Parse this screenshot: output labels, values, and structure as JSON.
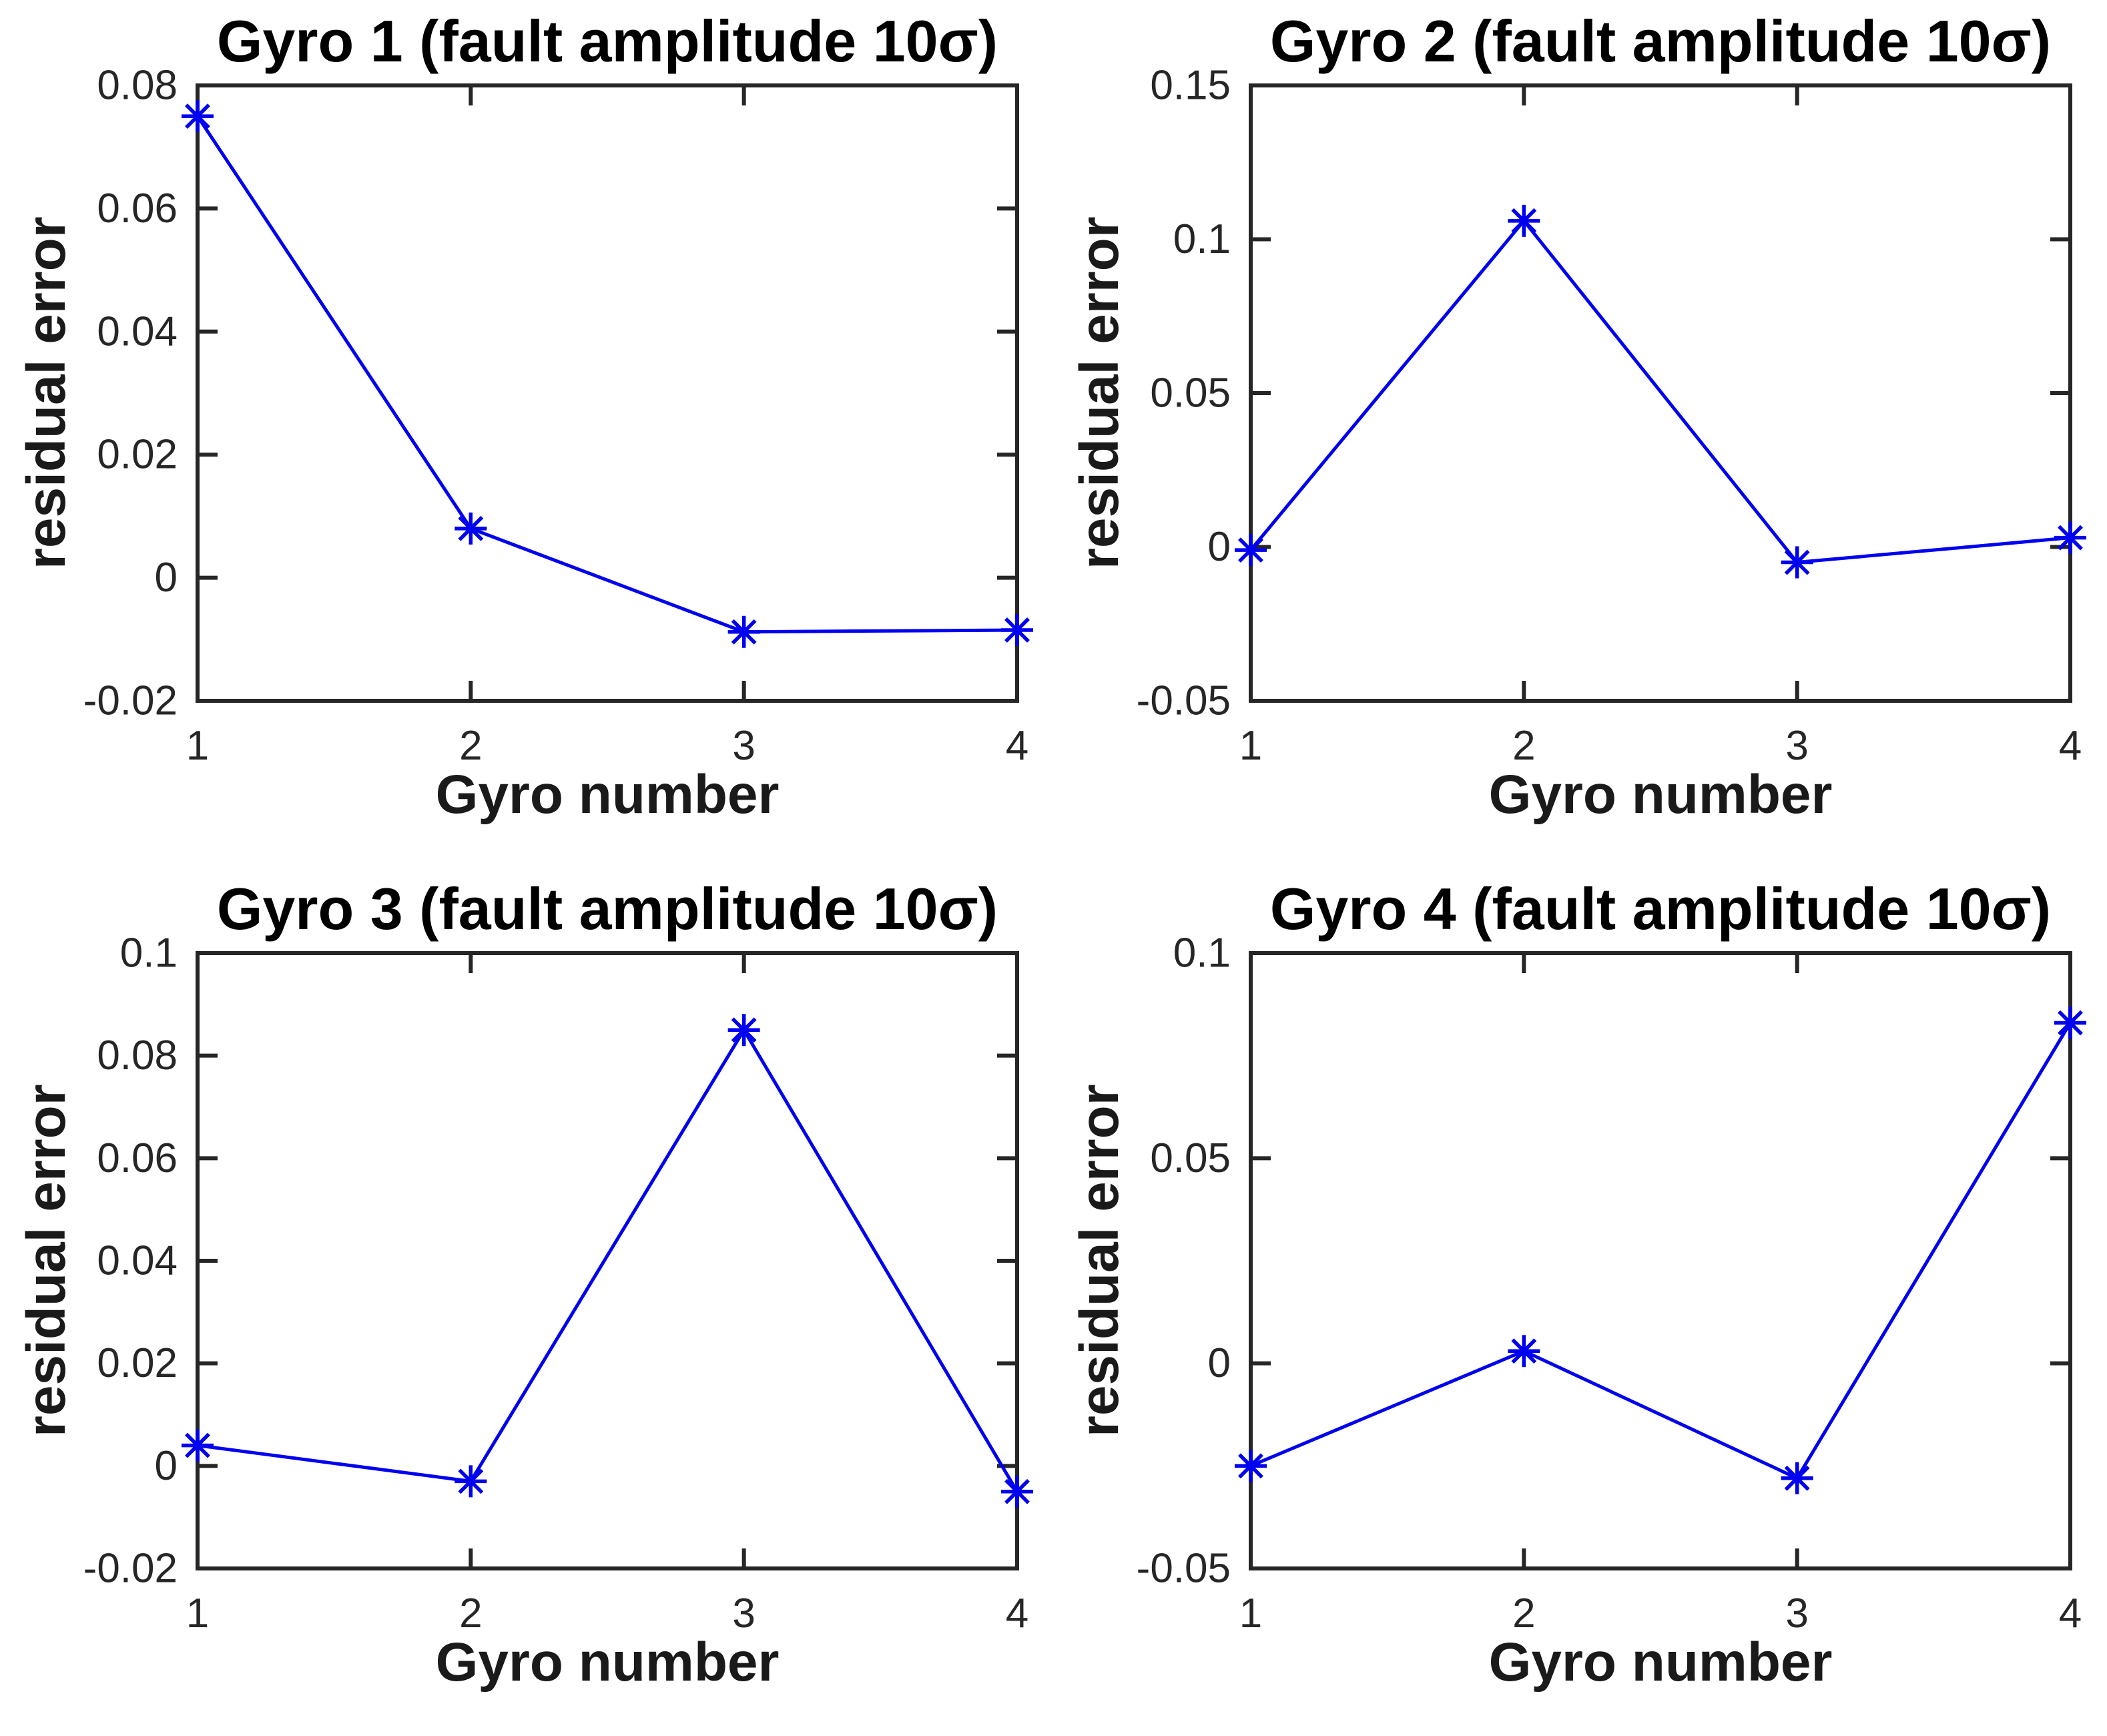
{
  "page": {
    "background": "#ffffff"
  },
  "colors": {
    "line": "#0000f0",
    "marker": "#0000f0",
    "axes": "#262626",
    "tick_text": "#262626",
    "label_text": "#1a1a1a",
    "title_text": "#000000"
  },
  "chart_data": [
    {
      "type": "line",
      "title": "Gyro 1 (fault amplitude 10σ)",
      "xlabel": "Gyro number",
      "ylabel": "residual error",
      "x": [
        1,
        2,
        3,
        4
      ],
      "values": [
        0.075,
        0.008,
        -0.0088,
        -0.0085
      ],
      "xlim": [
        1,
        4
      ],
      "ylim": [
        -0.02,
        0.08
      ],
      "xticks": [
        1,
        2,
        3,
        4
      ],
      "xtick_labels": [
        "1",
        "2",
        "3",
        "4"
      ],
      "yticks": [
        -0.02,
        0,
        0.02,
        0.04,
        0.06,
        0.08
      ],
      "ytick_labels": [
        "-0.02",
        "0",
        "0.02",
        "0.04",
        "0.06",
        "0.08"
      ],
      "marker": "asterisk",
      "legend": "none",
      "grid": false
    },
    {
      "type": "line",
      "title": "Gyro 2 (fault amplitude 10σ)",
      "xlabel": "Gyro number",
      "ylabel": "residual error",
      "x": [
        1,
        2,
        3,
        4
      ],
      "values": [
        -0.001,
        0.106,
        -0.005,
        0.003
      ],
      "xlim": [
        1,
        4
      ],
      "ylim": [
        -0.05,
        0.15
      ],
      "xticks": [
        1,
        2,
        3,
        4
      ],
      "xtick_labels": [
        "1",
        "2",
        "3",
        "4"
      ],
      "yticks": [
        -0.05,
        0,
        0.05,
        0.1,
        0.15
      ],
      "ytick_labels": [
        "-0.05",
        "0",
        "0.05",
        "0.1",
        "0.15"
      ],
      "marker": "asterisk",
      "legend": "none",
      "grid": false
    },
    {
      "type": "line",
      "title": "Gyro 3 (fault amplitude 10σ)",
      "xlabel": "Gyro number",
      "ylabel": "residual error",
      "x": [
        1,
        2,
        3,
        4
      ],
      "values": [
        0.004,
        -0.003,
        0.085,
        -0.005
      ],
      "xlim": [
        1,
        4
      ],
      "ylim": [
        -0.02,
        0.1
      ],
      "xticks": [
        1,
        2,
        3,
        4
      ],
      "xtick_labels": [
        "1",
        "2",
        "3",
        "4"
      ],
      "yticks": [
        -0.02,
        0,
        0.02,
        0.04,
        0.06,
        0.08,
        0.1
      ],
      "ytick_labels": [
        "-0.02",
        "0",
        "0.02",
        "0.04",
        "0.06",
        "0.08",
        "0.1"
      ],
      "marker": "asterisk",
      "legend": "none",
      "grid": false
    },
    {
      "type": "line",
      "title": "Gyro 4 (fault amplitude 10σ)",
      "xlabel": "Gyro number",
      "ylabel": "residual error",
      "x": [
        1,
        2,
        3,
        4
      ],
      "values": [
        -0.025,
        0.003,
        -0.028,
        0.083
      ],
      "xlim": [
        1,
        4
      ],
      "ylim": [
        -0.05,
        0.1
      ],
      "xticks": [
        1,
        2,
        3,
        4
      ],
      "xtick_labels": [
        "1",
        "2",
        "3",
        "4"
      ],
      "yticks": [
        -0.05,
        0,
        0.05,
        0.1
      ],
      "ytick_labels": [
        "-0.05",
        "0",
        "0.05",
        "0.1"
      ],
      "marker": "asterisk",
      "legend": "none",
      "grid": false
    }
  ]
}
